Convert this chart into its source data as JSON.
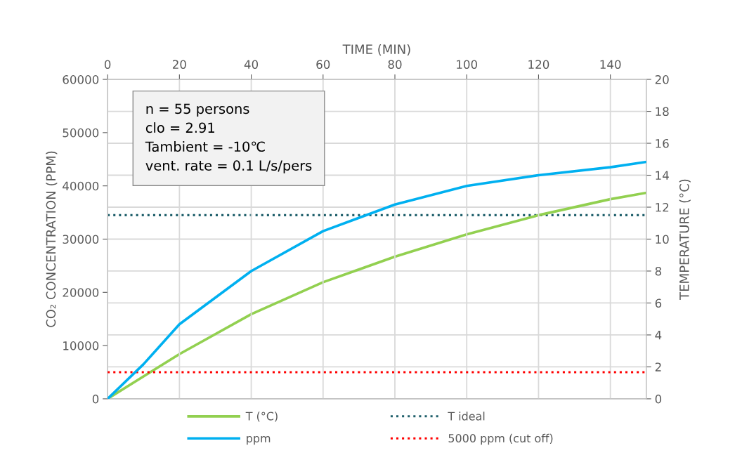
{
  "chart_data": {
    "type": "line",
    "xlabel": "TIME (MIN)",
    "ylabel": "CO₂ CONCENTRATION (PPM)",
    "y2label": "TEMPERATURE (°C)",
    "x": [
      0,
      10,
      20,
      40,
      60,
      80,
      100,
      120,
      140,
      150
    ],
    "series": [
      {
        "name": "T (°C)",
        "color": "#92d050",
        "axis": "y2",
        "values": [
          0,
          1.4,
          2.8,
          5.3,
          7.3,
          8.9,
          10.3,
          11.5,
          12.5,
          12.9
        ]
      },
      {
        "name": "ppm",
        "color": "#00b0f0",
        "values": [
          0,
          6500,
          14000,
          24000,
          31500,
          36500,
          40000,
          42000,
          43500,
          44500
        ]
      }
    ],
    "ref_lines": [
      {
        "axis": "y2",
        "value": 11.5,
        "label": "T ideal",
        "color": "#1f5f6b",
        "line_style": "dotted"
      },
      {
        "axis": "y",
        "value": 5000,
        "label": "5000 ppm (cut off)",
        "color": "#ff0000",
        "line_style": "dotted"
      }
    ],
    "annotations": [
      "n = 55 persons",
      "clo = 2.91",
      "Tambient = -10℃",
      "vent. rate = 0.1 L/s/pers"
    ],
    "xlim": [
      0,
      150
    ],
    "xticks": [
      0,
      20,
      40,
      60,
      80,
      100,
      120,
      140
    ],
    "ylim": [
      0,
      60000
    ],
    "yticks": [
      0,
      10000,
      20000,
      30000,
      40000,
      50000,
      60000
    ],
    "y2lim": [
      0,
      20
    ],
    "y2ticks": [
      0,
      2,
      4,
      6,
      8,
      10,
      12,
      14,
      16,
      18,
      20
    ],
    "grid": true,
    "legend": "bottom",
    "marker": "none",
    "line_style": "solid"
  }
}
